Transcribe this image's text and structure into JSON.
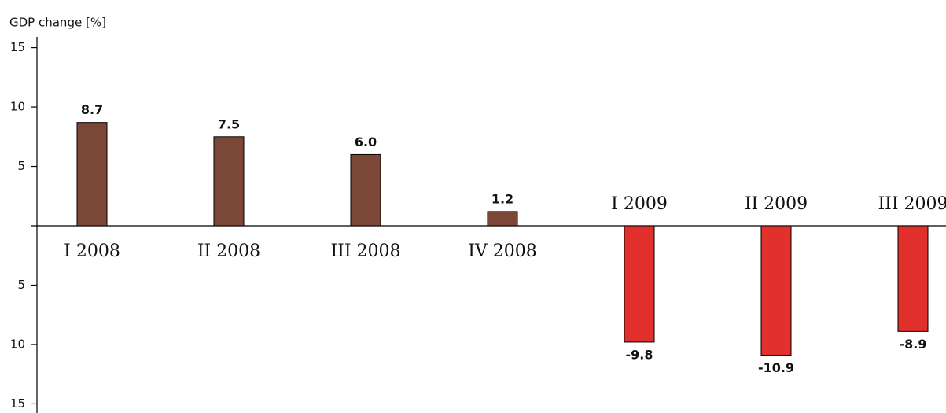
{
  "chart_data": {
    "type": "bar",
    "ylabel": "GDP change [%]",
    "categories": [
      "I 2008",
      "II 2008",
      "III 2008",
      "IV 2008",
      "I 2009",
      "II 2009",
      "III 2009"
    ],
    "values": [
      8.7,
      7.5,
      6.0,
      1.2,
      -9.8,
      -10.9,
      -8.9
    ],
    "value_labels": [
      "8.7",
      "7.5",
      "6.0",
      "1.2",
      "-9.8",
      "-10.9",
      "-8.9"
    ],
    "colors": [
      "#7b4838",
      "#7b4838",
      "#7b4838",
      "#7b4838",
      "#e2312c",
      "#e2312c",
      "#e2312c"
    ],
    "ylim": [
      -15.7,
      15.9
    ],
    "yticks": [
      {
        "value": -15,
        "label": "15"
      },
      {
        "value": -10,
        "label": "10"
      },
      {
        "value": -5,
        "label": "5"
      },
      5,
      10,
      15
    ],
    "grid": false
  }
}
